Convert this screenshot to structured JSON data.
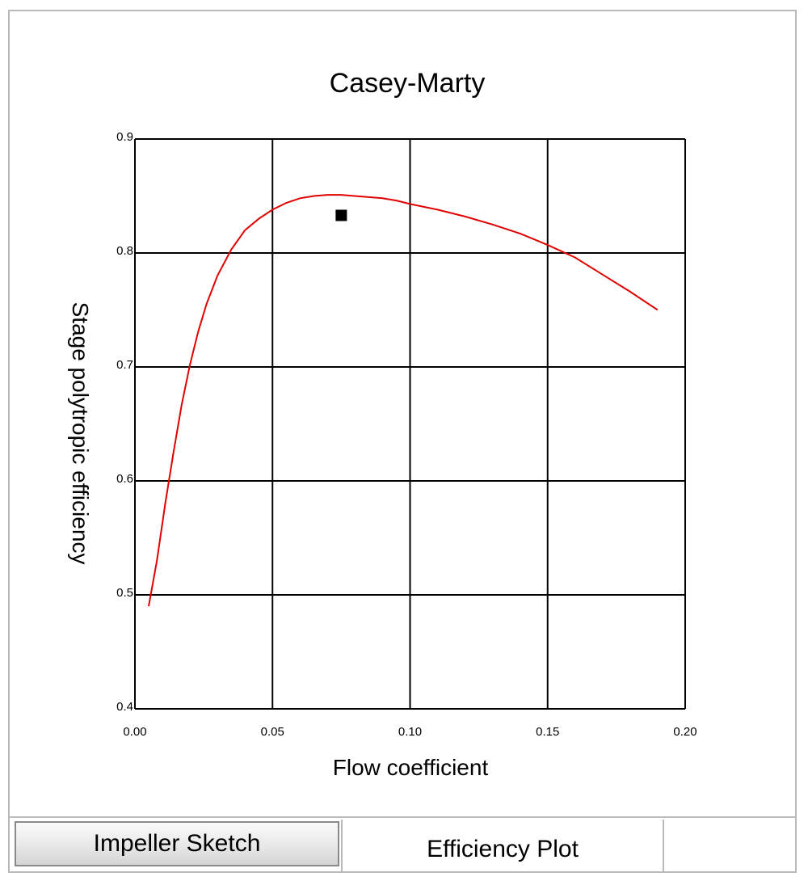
{
  "window": {
    "tabs": [
      {
        "label": "Impeller Sketch",
        "selected": false
      },
      {
        "label": "Efficiency Plot",
        "selected": true
      }
    ]
  },
  "chart_data": {
    "type": "line",
    "title": "Casey-Marty",
    "xlabel": "Flow coefficient",
    "ylabel": "Stage polytropic efficiency",
    "xlim": [
      0.0,
      0.2
    ],
    "ylim": [
      0.4,
      0.9
    ],
    "xticks": [
      "0.00",
      "0.05",
      "0.10",
      "0.15",
      "0.20"
    ],
    "yticks": [
      "0.4",
      "0.5",
      "0.6",
      "0.7",
      "0.8",
      "0.9"
    ],
    "grid": true,
    "series": [
      {
        "color": "#e00000",
        "x": [
          0.005,
          0.008,
          0.011,
          0.014,
          0.017,
          0.02,
          0.023,
          0.026,
          0.03,
          0.035,
          0.04,
          0.045,
          0.05,
          0.055,
          0.06,
          0.065,
          0.07,
          0.075,
          0.08,
          0.085,
          0.09,
          0.095,
          0.1,
          0.11,
          0.12,
          0.13,
          0.14,
          0.15,
          0.16,
          0.17,
          0.18,
          0.19
        ],
        "y": [
          0.49,
          0.53,
          0.58,
          0.625,
          0.667,
          0.702,
          0.731,
          0.755,
          0.78,
          0.803,
          0.82,
          0.83,
          0.838,
          0.844,
          0.848,
          0.85,
          0.851,
          0.851,
          0.85,
          0.849,
          0.848,
          0.846,
          0.843,
          0.838,
          0.832,
          0.825,
          0.817,
          0.807,
          0.796,
          0.781,
          0.766,
          0.75
        ]
      }
    ],
    "markers": [
      {
        "x": 0.075,
        "y": 0.833,
        "shape": "square",
        "color": "#000000"
      }
    ]
  }
}
